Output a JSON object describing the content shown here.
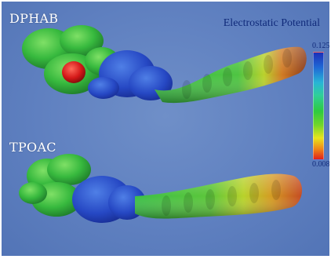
{
  "labels": {
    "top_molecule": "DPHAB",
    "bottom_molecule": "TPOAC"
  },
  "legend": {
    "title": "Electrostatic Potential",
    "max": "0.125",
    "min": "0.008"
  },
  "colors": {
    "background": "#6383c2",
    "positive_region": "#2646c8",
    "neutral_region": "#3fc24a",
    "warm_region": "#e8c21c",
    "negative_region": "#d81c1c"
  }
}
